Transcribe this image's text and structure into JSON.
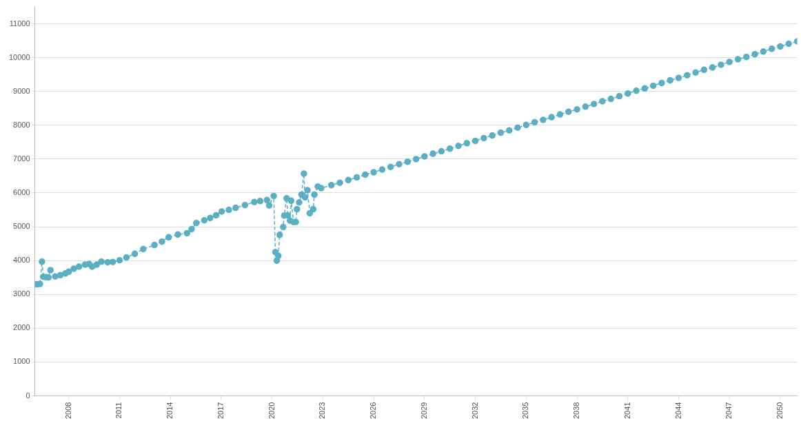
{
  "chart_data": {
    "type": "line",
    "x": [
      2006.0,
      2006.15,
      2006.3,
      2006.42,
      2006.5,
      2006.65,
      2006.8,
      2006.92,
      2007.2,
      2007.5,
      2007.8,
      2008.0,
      2008.3,
      2008.6,
      2008.96,
      2009.2,
      2009.38,
      2009.65,
      2009.93,
      2010.3,
      2010.6,
      2011.0,
      2011.4,
      2011.9,
      2012.4,
      2013.06,
      2013.5,
      2013.9,
      2014.44,
      2014.98,
      2015.25,
      2015.53,
      2016.0,
      2016.35,
      2016.7,
      2017.03,
      2017.45,
      2017.85,
      2018.4,
      2018.95,
      2019.3,
      2019.7,
      2019.83,
      2020.1,
      2020.2,
      2020.28,
      2020.37,
      2020.45,
      2020.66,
      2020.72,
      2020.86,
      2020.93,
      2021.06,
      2021.13,
      2021.27,
      2021.4,
      2021.47,
      2021.6,
      2021.74,
      2021.88,
      2021.95,
      2022.09,
      2022.23,
      2022.43,
      2022.5,
      2022.7,
      2022.9,
      2023.5,
      2024,
      2024.5,
      2025,
      2025.5,
      2026,
      2026.5,
      2027,
      2027.5,
      2028,
      2028.5,
      2029,
      2029.5,
      2030,
      2030.5,
      2031,
      2031.5,
      2032,
      2032.5,
      2033,
      2033.5,
      2034,
      2034.5,
      2035,
      2035.5,
      2036,
      2036.5,
      2037,
      2037.5,
      2038,
      2038.5,
      2039,
      2039.5,
      2040,
      2040.5,
      2041,
      2041.5,
      2042,
      2042.5,
      2043,
      2043.5,
      2044,
      2044.5,
      2045,
      2045.5,
      2046,
      2046.5,
      2047,
      2047.5,
      2048,
      2048.5,
      2049,
      2049.5,
      2050,
      2050.5,
      2051
    ],
    "series": [
      {
        "color": "#5aafc4",
        "values": [
          3300,
          3300,
          3310,
          3970,
          3520,
          3510,
          3500,
          3720,
          3530,
          3570,
          3620,
          3670,
          3760,
          3820,
          3880,
          3900,
          3820,
          3880,
          3970,
          3950,
          3960,
          4010,
          4090,
          4200,
          4340,
          4460,
          4560,
          4690,
          4770,
          4810,
          4930,
          5110,
          5190,
          5260,
          5340,
          5450,
          5500,
          5560,
          5640,
          5730,
          5760,
          5790,
          5630,
          5910,
          4250,
          4000,
          4140,
          4760,
          4990,
          5330,
          5840,
          5340,
          5180,
          5770,
          5140,
          5140,
          5520,
          5720,
          5950,
          6570,
          5870,
          6080,
          5400,
          5520,
          5950,
          6190,
          6140,
          6230,
          6300,
          6380,
          6460,
          6540,
          6610,
          6690,
          6770,
          6850,
          6920,
          7000,
          7080,
          7160,
          7230,
          7310,
          7390,
          7470,
          7540,
          7620,
          7700,
          7780,
          7850,
          7930,
          8010,
          8090,
          8160,
          8240,
          8320,
          8400,
          8470,
          8550,
          8630,
          8710,
          8780,
          8860,
          8940,
          9020,
          9090,
          9170,
          9250,
          9330,
          9400,
          9480,
          9560,
          9640,
          9710,
          9790,
          9870,
          9950,
          10020,
          10100,
          10180,
          10260,
          10330,
          10410,
          10480
        ]
      }
    ],
    "xlim": [
      2006,
      2051
    ],
    "xticks": [
      2008,
      2011,
      2014,
      2017,
      2020,
      2023,
      2026,
      2029,
      2032,
      2035,
      2038,
      2041,
      2044,
      2047,
      2050
    ],
    "ylim": [
      0,
      11500
    ],
    "yticks": [
      0,
      1000,
      2000,
      3000,
      4000,
      5000,
      6000,
      7000,
      8000,
      9000,
      10000,
      11000
    ],
    "grid": "y",
    "legend": false,
    "marker": "circle",
    "line_style": "dashed"
  }
}
